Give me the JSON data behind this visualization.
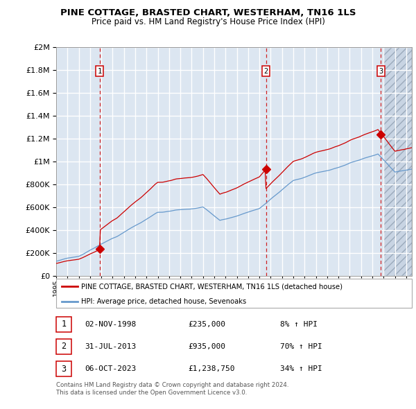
{
  "title1": "PINE COTTAGE, BRASTED CHART, WESTERHAM, TN16 1LS",
  "title2": "Price paid vs. HM Land Registry's House Price Index (HPI)",
  "ytick_values": [
    0,
    200000,
    400000,
    600000,
    800000,
    1000000,
    1200000,
    1400000,
    1600000,
    1800000,
    2000000
  ],
  "xmin": 1995.0,
  "xmax": 2026.5,
  "ymin": 0,
  "ymax": 2000000,
  "sale_dates": [
    1998.838,
    2013.578,
    2023.756
  ],
  "sale_prices": [
    235000,
    935000,
    1238750
  ],
  "sale_labels": [
    "1",
    "2",
    "3"
  ],
  "legend_line1": "PINE COTTAGE, BRASTED CHART, WESTERHAM, TN16 1LS (detached house)",
  "legend_line2": "HPI: Average price, detached house, Sevenoaks",
  "transaction_rows": [
    {
      "num": "1",
      "date": "02-NOV-1998",
      "price": "£235,000",
      "change": "8% ↑ HPI"
    },
    {
      "num": "2",
      "date": "31-JUL-2013",
      "price": "£935,000",
      "change": "70% ↑ HPI"
    },
    {
      "num": "3",
      "date": "06-OCT-2023",
      "price": "£1,238,750",
      "change": "34% ↑ HPI"
    }
  ],
  "footer1": "Contains HM Land Registry data © Crown copyright and database right 2024.",
  "footer2": "This data is licensed under the Open Government Licence v3.0.",
  "line_color_red": "#cc0000",
  "line_color_blue": "#6699cc",
  "bg_color": "#dce6f1",
  "grid_color": "#ffffff",
  "dashed_red": "#cc0000",
  "hatch_start": 2024.0
}
